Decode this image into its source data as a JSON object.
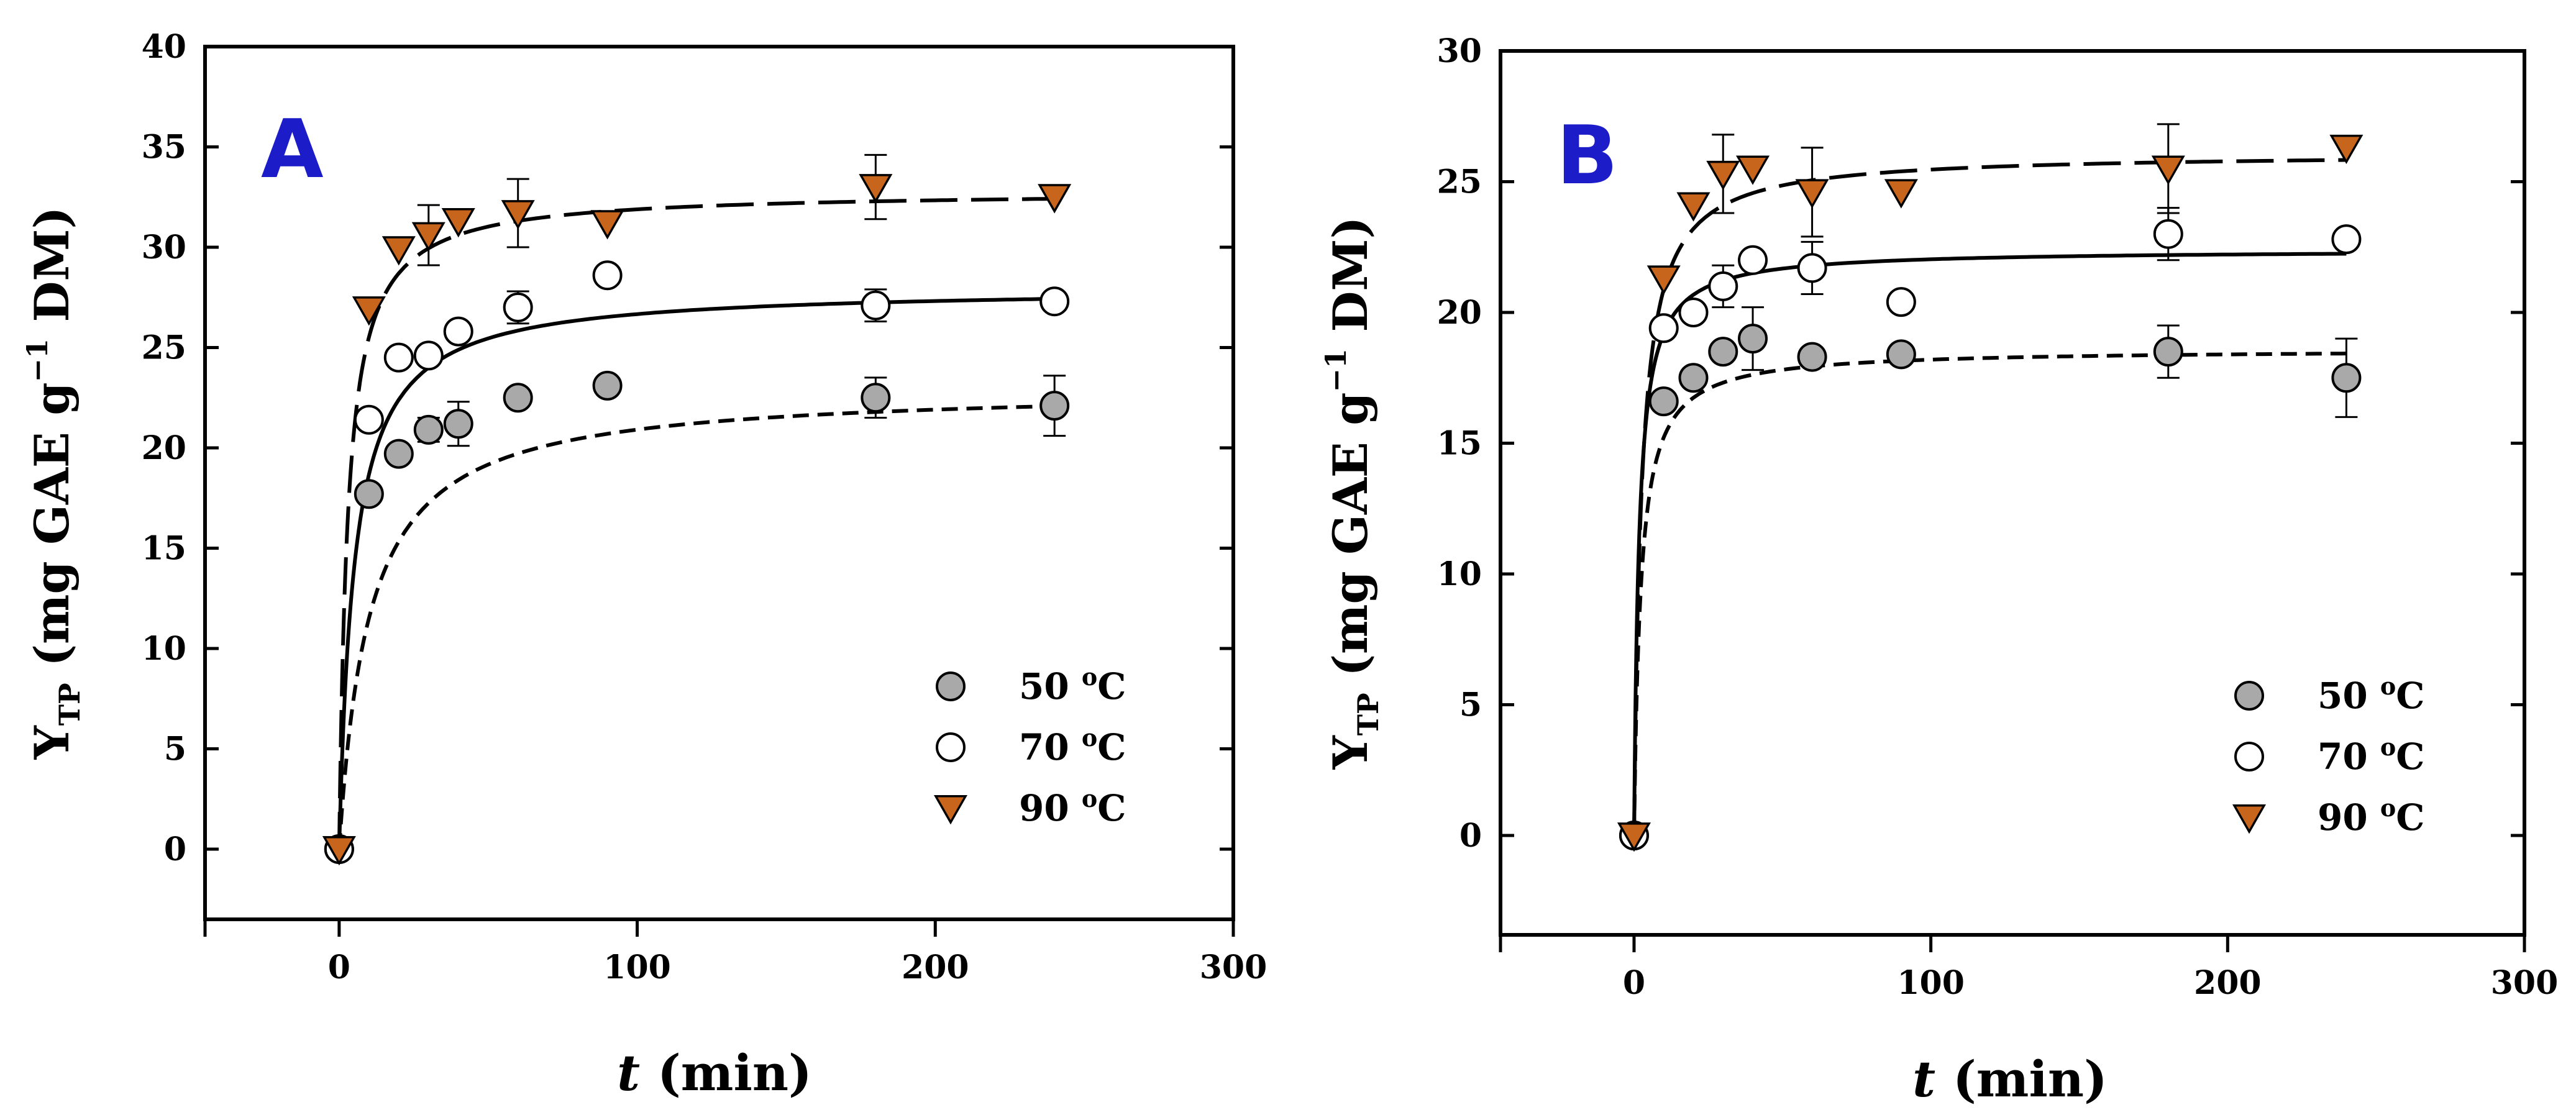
{
  "chart_data": [
    {
      "type": "scatter",
      "panel_label": "A",
      "xlabel_italic": "t",
      "xlabel_rest": "(min)",
      "ylabel": {
        "main": "Y",
        "subscript": "TP",
        "text1": "(mg GAE g",
        "superscript": "−1",
        "text2": "DM)"
      },
      "xlim": [
        -45,
        300
      ],
      "ylim": [
        -3.5,
        40
      ],
      "xticks": [
        0,
        100,
        200,
        300
      ],
      "yticks": [
        0,
        5,
        10,
        15,
        20,
        25,
        30,
        35,
        40
      ],
      "legend_position": "bottom-right",
      "series": [
        {
          "name": "50",
          "unit": "°C",
          "marker": "circle-gray",
          "fit_style": "short-dash",
          "x": [
            0,
            10,
            20,
            30,
            40,
            60,
            90,
            180,
            240
          ],
          "y": [
            0,
            17.7,
            19.7,
            20.9,
            21.2,
            22.5,
            23.1,
            22.5,
            22.1
          ],
          "err": [
            0,
            0,
            0,
            0.6,
            1.1,
            0,
            0,
            1.0,
            1.5
          ],
          "fit": {
            "ymax": 23.0,
            "k": 0.1
          }
        },
        {
          "name": "70",
          "unit": "°C",
          "marker": "circle-open",
          "fit_style": "solid",
          "x": [
            0,
            10,
            20,
            30,
            40,
            60,
            90,
            180,
            240
          ],
          "y": [
            0,
            21.4,
            24.5,
            24.6,
            25.8,
            27.0,
            28.6,
            27.1,
            27.3
          ],
          "err": [
            0,
            0,
            0,
            0,
            0,
            0.8,
            0,
            0.8,
            0
          ],
          "fit": {
            "ymax": 28.0,
            "k": 0.2
          }
        },
        {
          "name": "90",
          "unit": "°C",
          "marker": "triangle-down-orange",
          "fit_style": "long-dash",
          "x": [
            0,
            10,
            20,
            30,
            40,
            60,
            90,
            180,
            240
          ],
          "y": [
            0,
            26.9,
            29.9,
            30.6,
            31.3,
            31.7,
            31.2,
            33.0,
            32.5
          ],
          "err": [
            0,
            0,
            0,
            1.5,
            0,
            1.7,
            0,
            1.6,
            0
          ],
          "fit": {
            "ymax": 32.8,
            "k": 0.35
          }
        }
      ]
    },
    {
      "type": "scatter",
      "panel_label": "B",
      "xlabel_italic": "t",
      "xlabel_rest": "(min)",
      "ylabel": {
        "main": "Y",
        "subscript": "TP",
        "text1": "(mg GAE g",
        "superscript": "−1",
        "text2": "DM)"
      },
      "xlim": [
        -45,
        300
      ],
      "ylim": [
        -3.8,
        30
      ],
      "xticks": [
        0,
        100,
        200,
        300
      ],
      "yticks": [
        0,
        5,
        10,
        15,
        20,
        25,
        30
      ],
      "legend_position": "bottom-right",
      "series": [
        {
          "name": "50",
          "unit": "°C",
          "marker": "circle-gray",
          "fit_style": "short-dash",
          "x": [
            0,
            10,
            20,
            30,
            40,
            60,
            90,
            180,
            240
          ],
          "y": [
            0,
            16.6,
            17.5,
            18.5,
            19.0,
            18.3,
            18.4,
            18.5,
            17.5
          ],
          "err": [
            0,
            0,
            0,
            0,
            1.2,
            0,
            0,
            1.0,
            1.5
          ],
          "fit": {
            "ymax": 18.6,
            "k": 0.45
          }
        },
        {
          "name": "70",
          "unit": "°C",
          "marker": "circle-open",
          "fit_style": "solid",
          "x": [
            0,
            10,
            20,
            30,
            40,
            60,
            90,
            180,
            240
          ],
          "y": [
            0,
            19.4,
            20.0,
            21.0,
            22.0,
            21.7,
            20.4,
            23.0,
            22.8
          ],
          "err": [
            0,
            0,
            0,
            0.8,
            0,
            1.0,
            0,
            1.0,
            0
          ],
          "fit": {
            "ymax": 22.4,
            "k": 0.6
          }
        },
        {
          "name": "90",
          "unit": "°C",
          "marker": "triangle-down-orange",
          "fit_style": "long-dash",
          "x": [
            0,
            10,
            20,
            30,
            40,
            60,
            90,
            180,
            240
          ],
          "y": [
            0,
            21.3,
            24.1,
            25.3,
            25.5,
            24.6,
            24.6,
            25.5,
            26.3
          ],
          "err": [
            0,
            0,
            0,
            1.5,
            0,
            1.7,
            0,
            1.7,
            0
          ],
          "fit": {
            "ymax": 26.1,
            "k": 0.4
          }
        }
      ]
    }
  ],
  "colors": {
    "gray_marker": "#a9a9a9",
    "orange_marker": "#c8651c",
    "panel_label": "#1c1cc8"
  }
}
